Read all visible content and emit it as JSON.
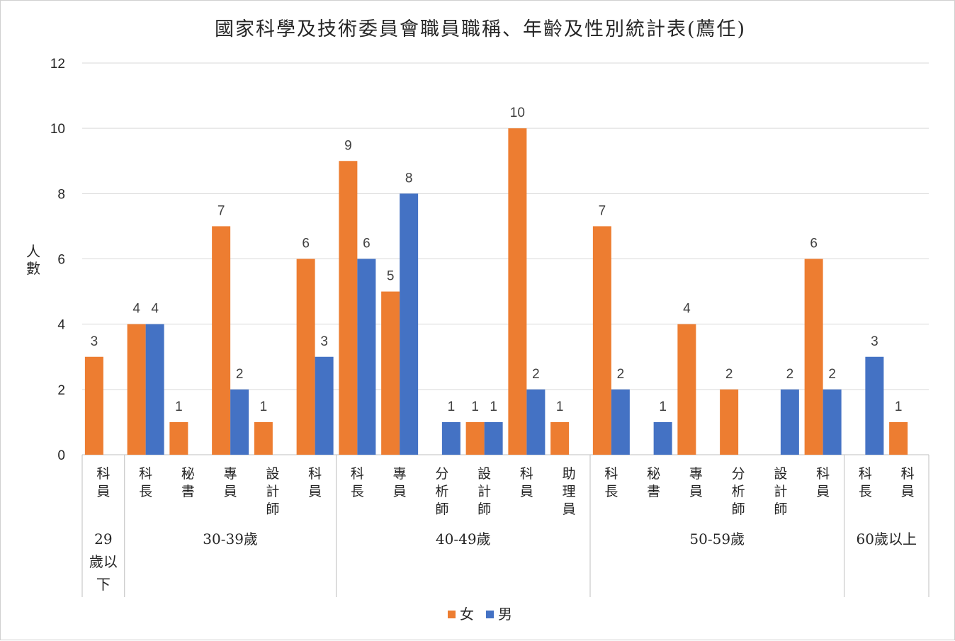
{
  "chart_data": {
    "type": "bar",
    "title": "國家科學及技術委員會職員職稱、年齡及性別統計表(薦任)",
    "ylabel": "人數",
    "xlabel": "",
    "ylim": [
      0,
      12
    ],
    "yticks": [
      0,
      2,
      4,
      6,
      8,
      10,
      12
    ],
    "grid": true,
    "legend_position": "bottom",
    "colors": {
      "女": "#ED7D31",
      "男": "#4472C4"
    },
    "groups": [
      {
        "label": "29歲以下",
        "categories": [
          "科員"
        ]
      },
      {
        "label": "30-39歲",
        "categories": [
          "科長",
          "秘書",
          "專員",
          "設計師",
          "科員"
        ]
      },
      {
        "label": "40-49歲",
        "categories": [
          "科長",
          "專員",
          "分析師",
          "設計師",
          "科員",
          "助理員"
        ]
      },
      {
        "label": "50-59歲",
        "categories": [
          "科長",
          "秘書",
          "專員",
          "分析師",
          "設計師",
          "科員"
        ]
      },
      {
        "label": "60歲以上",
        "categories": [
          "科長",
          "科員"
        ]
      }
    ],
    "categories": [
      "科員",
      "科長",
      "秘書",
      "專員",
      "設計師",
      "科員",
      "科長",
      "專員",
      "分析師",
      "設計師",
      "科員",
      "助理員",
      "科長",
      "秘書",
      "專員",
      "分析師",
      "設計師",
      "科員",
      "科長",
      "科員"
    ],
    "series": [
      {
        "name": "女",
        "values": [
          3,
          4,
          1,
          7,
          1,
          6,
          9,
          5,
          0,
          1,
          10,
          1,
          7,
          0,
          4,
          2,
          0,
          6,
          0,
          1
        ]
      },
      {
        "name": "男",
        "values": [
          0,
          4,
          0,
          2,
          0,
          3,
          6,
          8,
          1,
          1,
          2,
          0,
          2,
          1,
          0,
          0,
          2,
          2,
          3,
          0
        ]
      }
    ]
  }
}
